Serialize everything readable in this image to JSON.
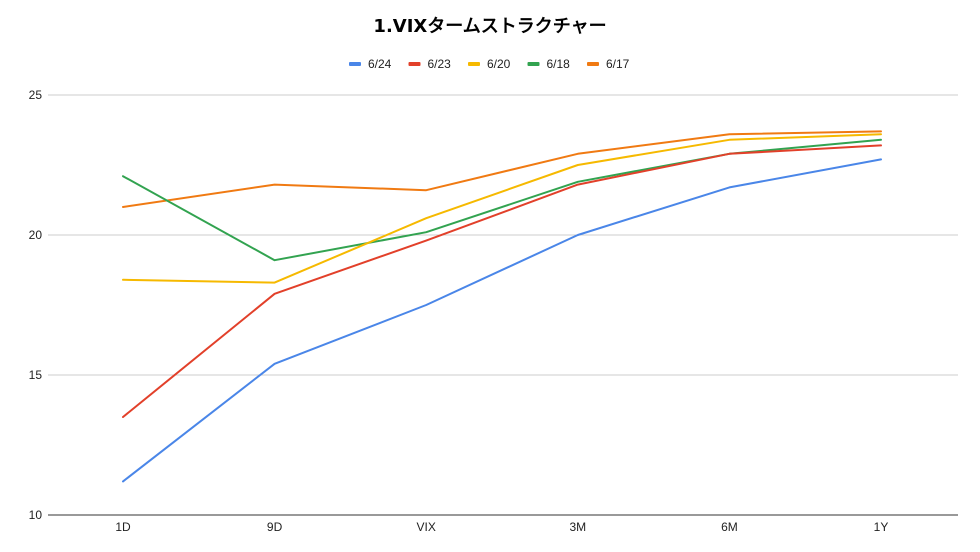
{
  "chart_data": {
    "type": "line",
    "title": "1.VIXタームストラクチャー",
    "xlabel": "",
    "ylabel": "",
    "categories": [
      "1D",
      "9D",
      "VIX",
      "3M",
      "6M",
      "1Y"
    ],
    "ylim": [
      10,
      25
    ],
    "yticks": [
      10,
      15,
      20,
      25
    ],
    "grid": true,
    "legend_position": "top",
    "series": [
      {
        "name": "6/24",
        "color": "#4a86e8",
        "values": [
          11.2,
          15.4,
          17.5,
          20.0,
          21.7,
          22.7
        ]
      },
      {
        "name": "6/23",
        "color": "#e2402a",
        "values": [
          13.5,
          17.9,
          19.8,
          21.8,
          22.9,
          23.2
        ]
      },
      {
        "name": "6/20",
        "color": "#f6b900",
        "values": [
          18.4,
          18.3,
          20.6,
          22.5,
          23.4,
          23.6
        ]
      },
      {
        "name": "6/18",
        "color": "#32a350",
        "values": [
          22.1,
          19.1,
          20.1,
          21.9,
          22.9,
          23.4
        ]
      },
      {
        "name": "6/17",
        "color": "#f07a12",
        "values": [
          21.0,
          21.8,
          21.6,
          22.9,
          23.6,
          23.7
        ]
      }
    ]
  }
}
